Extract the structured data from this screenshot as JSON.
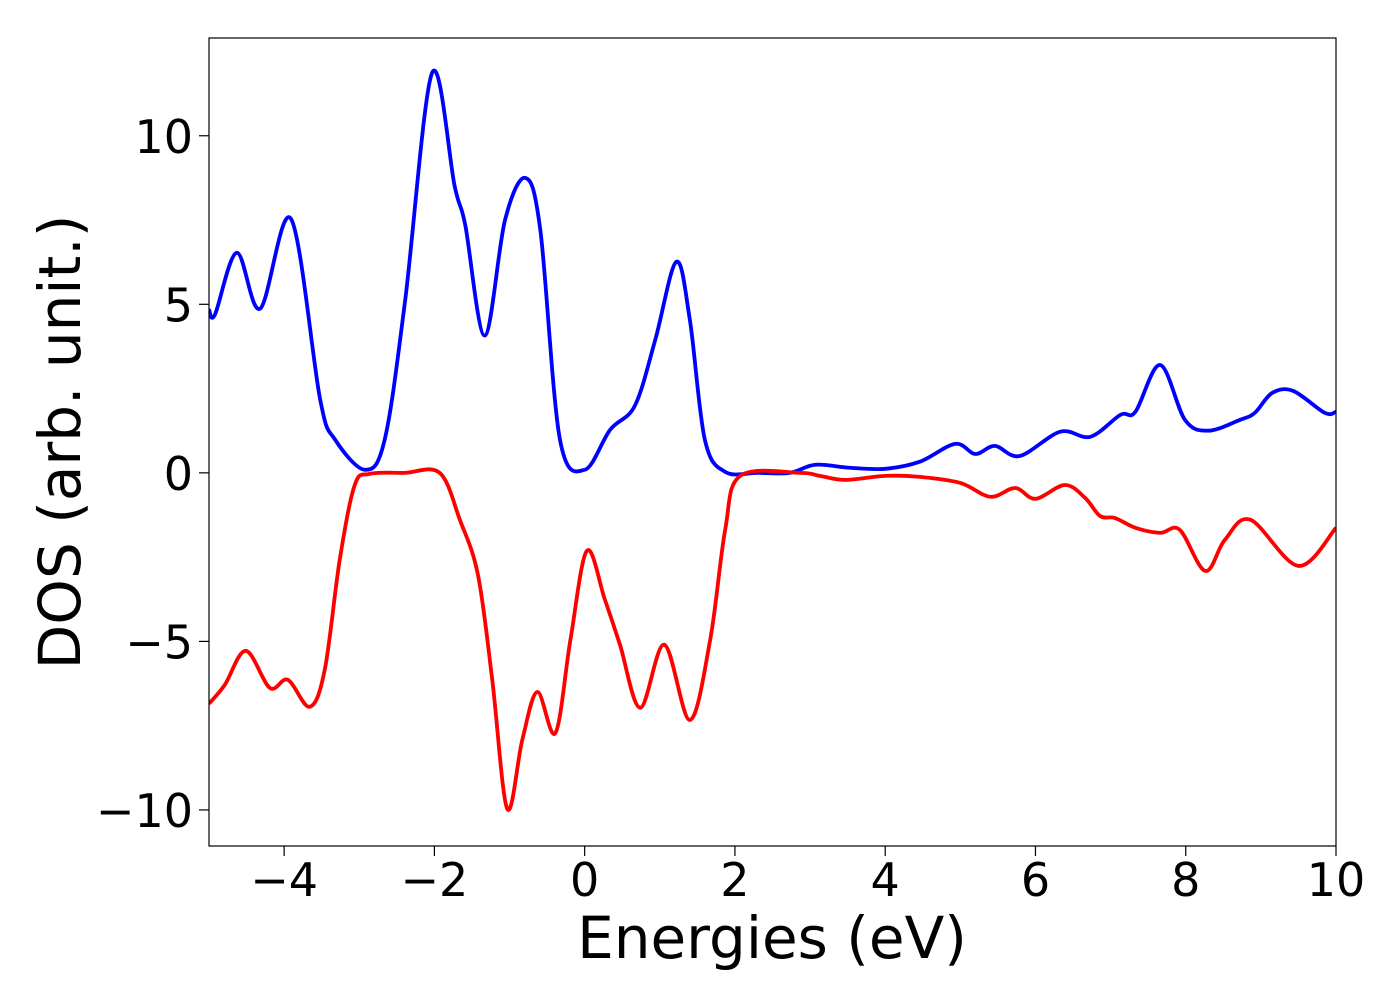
{
  "chart_data": {
    "type": "line",
    "x_label": "Energies (eV)",
    "y_label": "DOS (arb. unit.)",
    "xlim": [
      -5,
      10
    ],
    "ylim": [
      -11.07,
      12.9
    ],
    "xticks": [
      {
        "value": -4,
        "label": "−4"
      },
      {
        "value": -2,
        "label": "−2"
      },
      0,
      2,
      4,
      6,
      8,
      10
    ],
    "yticks": [
      {
        "value": -10,
        "label": "−10"
      },
      {
        "value": -5,
        "label": "−5"
      },
      0,
      5,
      10
    ],
    "series": [
      {
        "color": "#0000ff",
        "x": [
          -5,
          -4.92,
          -4.63,
          -4.32,
          -3.91,
          -3.52,
          -3.32,
          -2.92,
          -2.66,
          -2.39,
          -2.03,
          -1.73,
          -1.59,
          -1.33,
          -1.06,
          -0.79,
          -0.59,
          -0.33,
          0.0,
          0.34,
          0.67,
          0.94,
          1.22,
          1.4,
          1.6,
          1.87,
          2.3,
          2.73,
          3.07,
          3.53,
          4.0,
          4.46,
          4.93,
          5.2,
          5.46,
          5.79,
          6.33,
          6.73,
          7.13,
          7.33,
          7.66,
          7.99,
          8.3,
          8.72,
          8.92,
          9.15,
          9.43,
          9.85,
          10
        ],
        "values": [
          4.84,
          4.7,
          6.53,
          4.87,
          7.54,
          2.17,
          0.98,
          0.09,
          1.0,
          5.1,
          11.87,
          8.5,
          7.36,
          4.07,
          7.5,
          8.75,
          7.2,
          1.0,
          0.09,
          1.28,
          2.0,
          3.95,
          6.26,
          4.54,
          0.98,
          0.03,
          0,
          0,
          0.24,
          0.15,
          0.12,
          0.33,
          0.86,
          0.56,
          0.8,
          0.5,
          1.22,
          1.07,
          1.72,
          1.81,
          3.2,
          1.57,
          1.25,
          1.57,
          1.78,
          2.37,
          2.43,
          1.78,
          1.81
        ]
      },
      {
        "color": "#ff0000",
        "x": [
          -5,
          -4.79,
          -4.51,
          -4.19,
          -3.95,
          -3.66,
          -3.46,
          -3.26,
          -3.06,
          -2.86,
          -2.4,
          -1.93,
          -1.66,
          -1.42,
          -1.23,
          -1.03,
          -0.83,
          -0.63,
          -0.39,
          -0.19,
          0.03,
          0.27,
          0.47,
          0.74,
          1.06,
          1.4,
          1.67,
          1.87,
          2.07,
          2.87,
          3.13,
          3.47,
          4.0,
          4.46,
          5.0,
          5.4,
          5.73,
          6.0,
          6.39,
          6.66,
          6.86,
          7.06,
          7.33,
          7.66,
          7.92,
          8.26,
          8.52,
          8.86,
          9.5,
          10
        ],
        "values": [
          -6.85,
          -6.29,
          -5.28,
          -6.38,
          -6.14,
          -6.94,
          -5.85,
          -2.58,
          -0.36,
          -0.03,
          0,
          0,
          -1.4,
          -3.03,
          -6.14,
          -9.97,
          -7.92,
          -6.5,
          -7.72,
          -4.96,
          -2.31,
          -3.77,
          -5.1,
          -6.97,
          -5.1,
          -7.33,
          -4.96,
          -1.69,
          -0.09,
          0,
          -0.09,
          -0.21,
          -0.09,
          -0.12,
          -0.3,
          -0.71,
          -0.45,
          -0.77,
          -0.36,
          -0.74,
          -1.28,
          -1.34,
          -1.63,
          -1.78,
          -1.69,
          -2.91,
          -1.99,
          -1.39,
          -2.76,
          -1.63
        ]
      }
    ]
  }
}
